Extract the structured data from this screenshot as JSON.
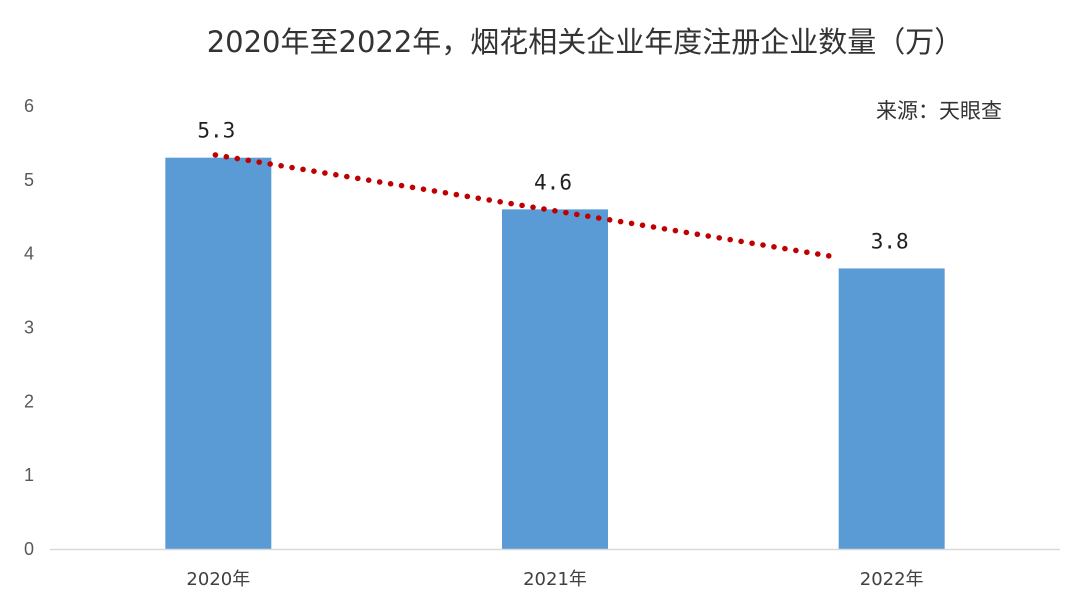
{
  "chart_data": {
    "type": "bar",
    "title": "2020年至2022年，烟花相关企业年度注册企业数量（万）",
    "source": "来源：天眼查",
    "categories": [
      "2020年",
      "2021年",
      "2022年"
    ],
    "values": [
      5.3,
      4.6,
      3.8
    ],
    "data_labels": [
      "5.3",
      "4.6",
      "3.8"
    ],
    "y_ticks": [
      "0",
      "1",
      "2",
      "3",
      "4",
      "5",
      "6"
    ],
    "ylim": [
      0,
      6
    ],
    "xlabel": "",
    "ylabel": "",
    "grid": false,
    "trendline": "linear-dotted",
    "colors": {
      "bar": "#5b9bd5",
      "trendline": "#c00000",
      "axis": "#d9d9d9"
    }
  }
}
